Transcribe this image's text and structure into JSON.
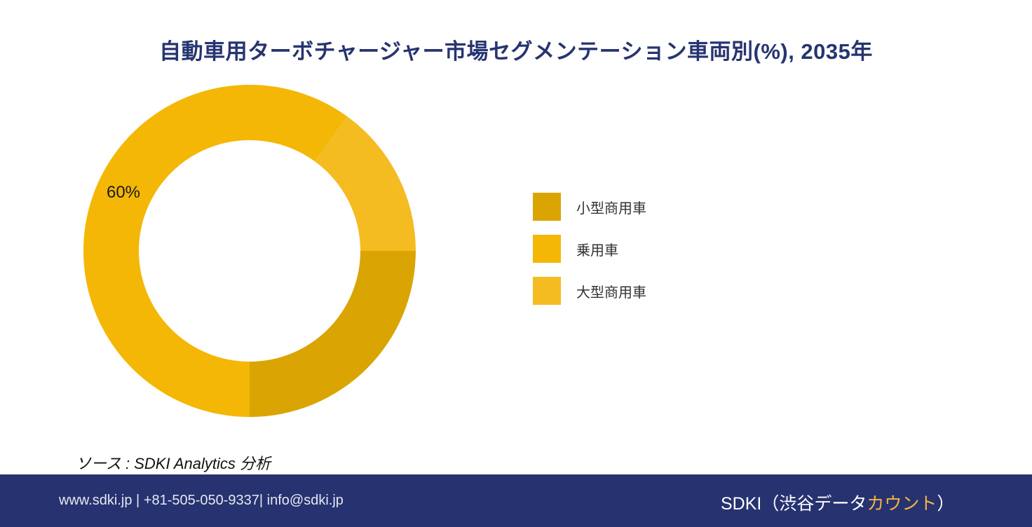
{
  "title": "自動車用ターボチャージャー市場セグメンテーション車両別(%), 2035年",
  "chart_data": {
    "type": "pie",
    "variant": "donut",
    "title": "自動車用ターボチャージャー市場セグメンテーション車両別(%), 2035年",
    "categories": [
      "小型商用車",
      "乗用車",
      "大型商用車"
    ],
    "values": [
      25,
      60,
      15
    ],
    "colors": [
      "#DAA503",
      "#F4B705",
      "#F4BC20"
    ],
    "data_labels": [
      null,
      "60%",
      null
    ],
    "legend_position": "right",
    "start_angle_deg": 0,
    "direction": "clockwise"
  },
  "legend": {
    "items": [
      {
        "label": "小型商用車",
        "color": "#DAA503"
      },
      {
        "label": "乗用車",
        "color": "#F4B705"
      },
      {
        "label": "大型商用車",
        "color": "#F4BC20"
      }
    ]
  },
  "data_label": "60%",
  "source": "ソース : SDKI Analytics 分析",
  "footer": {
    "contact": "www.sdki.jp | +81-505-050-9337| info@sdki.jp",
    "brand_prefix": "SDKI（渋谷データ",
    "brand_accent": "カウント",
    "brand_suffix": "）",
    "background": "#273270",
    "accent_color": "#F4B63E"
  }
}
